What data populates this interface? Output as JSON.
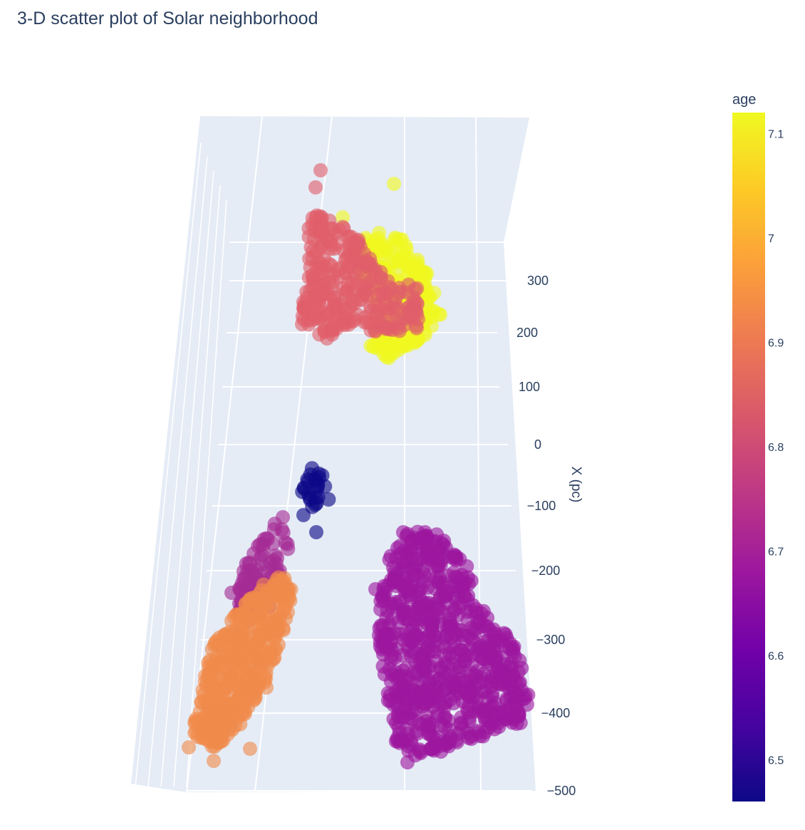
{
  "title": "3-D scatter plot of Solar neighborhood",
  "chart_data": {
    "type": "scatter",
    "title": "3-D scatter plot of Solar neighborhood",
    "dimensions": 3,
    "zlabel": "X (pc)",
    "z_ticks": [
      300,
      200,
      100,
      0,
      -100,
      -200,
      -300,
      -400,
      -500
    ],
    "z_tick_labels": [
      "300",
      "200",
      "100",
      "0",
      "−100",
      "−200",
      "−300",
      "−400",
      "−500"
    ],
    "zlim": [
      -500,
      340
    ],
    "background": "#e5ecf6",
    "grid": true,
    "colorbar": {
      "title": "age",
      "range": [
        6.46,
        7.12
      ],
      "ticks": [
        7.1,
        7.0,
        6.9,
        6.8,
        6.7,
        6.6,
        6.5
      ],
      "tick_labels": [
        "7.1",
        "7",
        "6.9",
        "6.8",
        "6.7",
        "6.6",
        "6.5"
      ],
      "colorscale": [
        "#0d0887",
        "#46039f",
        "#7201a8",
        "#9c179e",
        "#bd3786",
        "#d8576b",
        "#ed7953",
        "#fb9f3a",
        "#fdca26",
        "#f0f921"
      ]
    },
    "clusters": [
      {
        "age": 7.1,
        "color": "#f0f921",
        "z_range": [
          220,
          330
        ],
        "approx_count": 260
      },
      {
        "age": 6.82,
        "color": "#e0606a",
        "z_range": [
          190,
          320
        ],
        "approx_count": 300
      },
      {
        "age": 6.49,
        "color": "#0d0887",
        "z_range": [
          -160,
          -40
        ],
        "approx_count": 25
      },
      {
        "age": 6.72,
        "color": "#a52c95",
        "z_range": [
          -290,
          -130
        ],
        "approx_count": 90
      },
      {
        "age": 6.95,
        "color": "#f08a4c",
        "z_range": [
          -500,
          -240
        ],
        "approx_count": 420
      },
      {
        "age": 6.66,
        "color": "#9c179e",
        "z_range": [
          -470,
          -150
        ],
        "approx_count": 700
      }
    ]
  }
}
